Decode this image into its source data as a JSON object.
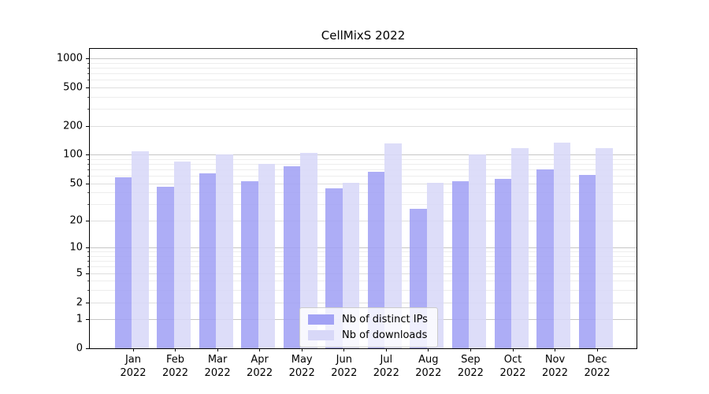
{
  "title": "CellMixS 2022",
  "chart_data": {
    "type": "bar",
    "title": "CellMixS 2022",
    "categories": [
      "Jan 2022",
      "Feb 2022",
      "Mar 2022",
      "Apr 2022",
      "May 2022",
      "Jun 2022",
      "Jul 2022",
      "Aug 2022",
      "Sep 2022",
      "Oct 2022",
      "Nov 2022",
      "Dec 2022"
    ],
    "series": [
      {
        "name": "Nb of distinct IPs",
        "key": "distinct-ips",
        "color": "#a2a2f5",
        "values": [
          58,
          46,
          64,
          53,
          75,
          44,
          66,
          27,
          53,
          56,
          70,
          61
        ]
      },
      {
        "name": "Nb of downloads",
        "key": "downloads",
        "color": "#d8d8f8",
        "values": [
          108,
          85,
          100,
          80,
          105,
          51,
          130,
          51,
          101,
          118,
          134,
          118
        ]
      }
    ],
    "yscale": "log1p",
    "yticks": [
      0,
      1,
      2,
      5,
      10,
      20,
      50,
      100,
      200,
      500,
      1000
    ],
    "ytick_labels": [
      "0",
      "1",
      "2",
      "5",
      "10",
      "20",
      "50",
      "100",
      "200",
      "500",
      "1000"
    ],
    "minor_ticks": [
      3,
      4,
      6,
      7,
      8,
      9,
      30,
      40,
      60,
      70,
      80,
      90,
      300,
      400,
      600,
      700,
      800,
      900
    ],
    "ylim": [
      0,
      1255
    ],
    "xlabel": "",
    "ylabel": "",
    "grid": true,
    "legend_position": "bottom-center",
    "colors": {
      "grid_major": "#c6c6c6",
      "grid_mid": "#dedede",
      "grid_minor": "#ededed",
      "axis": "#000000",
      "legend_border": "#cccccc"
    }
  }
}
